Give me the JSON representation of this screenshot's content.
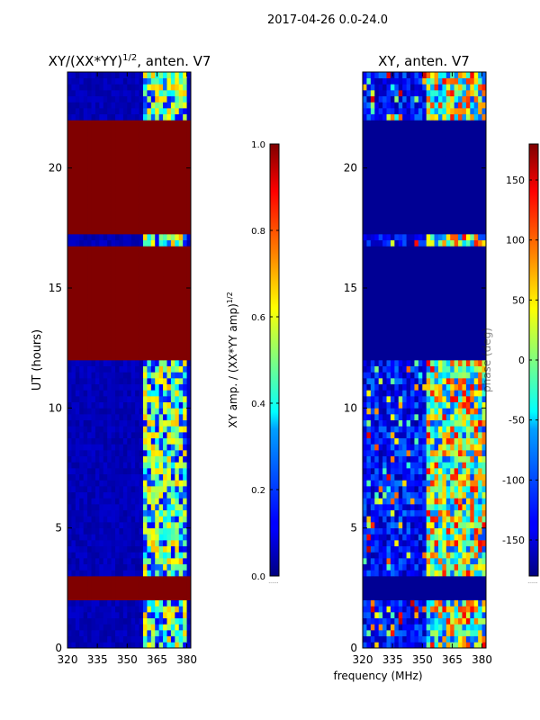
{
  "figure": {
    "suptitle": "2017-04-26 0.0-24.0",
    "shared_xlabel": "frequency (MHz)"
  },
  "chart_data": [
    {
      "type": "heatmap",
      "title": "XY/(XX*YY)",
      "title_exponent": "1/2",
      "title_suffix": ", anten. V7",
      "xlabel": "",
      "ylabel": "UT (hours)",
      "xlim": [
        320,
        382
      ],
      "ylim": [
        0,
        24
      ],
      "xticks": [
        320,
        335,
        350,
        365,
        380
      ],
      "yticks": [
        0,
        5,
        10,
        15,
        20
      ],
      "saturated_value": 1.0,
      "active_band_mhz": [
        359,
        380
      ],
      "saturated_hour_blocks": [
        [
          2.0,
          3.0
        ],
        [
          12.0,
          16.8
        ],
        [
          17.2,
          20.9
        ],
        [
          21.1,
          22.0
        ]
      ],
      "colorbar": {
        "label": "XY amp. / (XX*YY amp)",
        "label_exponent": "1/2",
        "range": [
          0.0,
          1.0
        ],
        "ticks": [
          "0.0",
          "0.2",
          "0.4",
          "0.6",
          "0.8",
          "1.0"
        ],
        "under_label": "......"
      }
    },
    {
      "type": "heatmap",
      "title": "XY, anten. V7",
      "xlabel": "",
      "ylabel": "",
      "xlim": [
        320,
        382
      ],
      "ylim": [
        0,
        24
      ],
      "xticks": [
        320,
        335,
        350,
        365,
        380
      ],
      "yticks": [
        0,
        5,
        10,
        15,
        20
      ],
      "flagged_value_deg": -180,
      "active_band_mhz": [
        352,
        380
      ],
      "flagged_hour_blocks": [
        [
          2.0,
          3.0
        ],
        [
          12.0,
          16.8
        ],
        [
          17.2,
          20.9
        ],
        [
          21.1,
          22.0
        ]
      ],
      "colorbar": {
        "label": "phase (deg)",
        "range": [
          -180,
          180
        ],
        "ticks": [
          "-150",
          "-100",
          "-50",
          "0",
          "50",
          "100",
          "150"
        ],
        "under_label": "......"
      }
    }
  ],
  "colors": {
    "jet": [
      "#00007f",
      "#0000ff",
      "#007fff",
      "#00ffff",
      "#7fff7f",
      "#ffff00",
      "#ff7f00",
      "#ff0000",
      "#7f0000"
    ]
  }
}
